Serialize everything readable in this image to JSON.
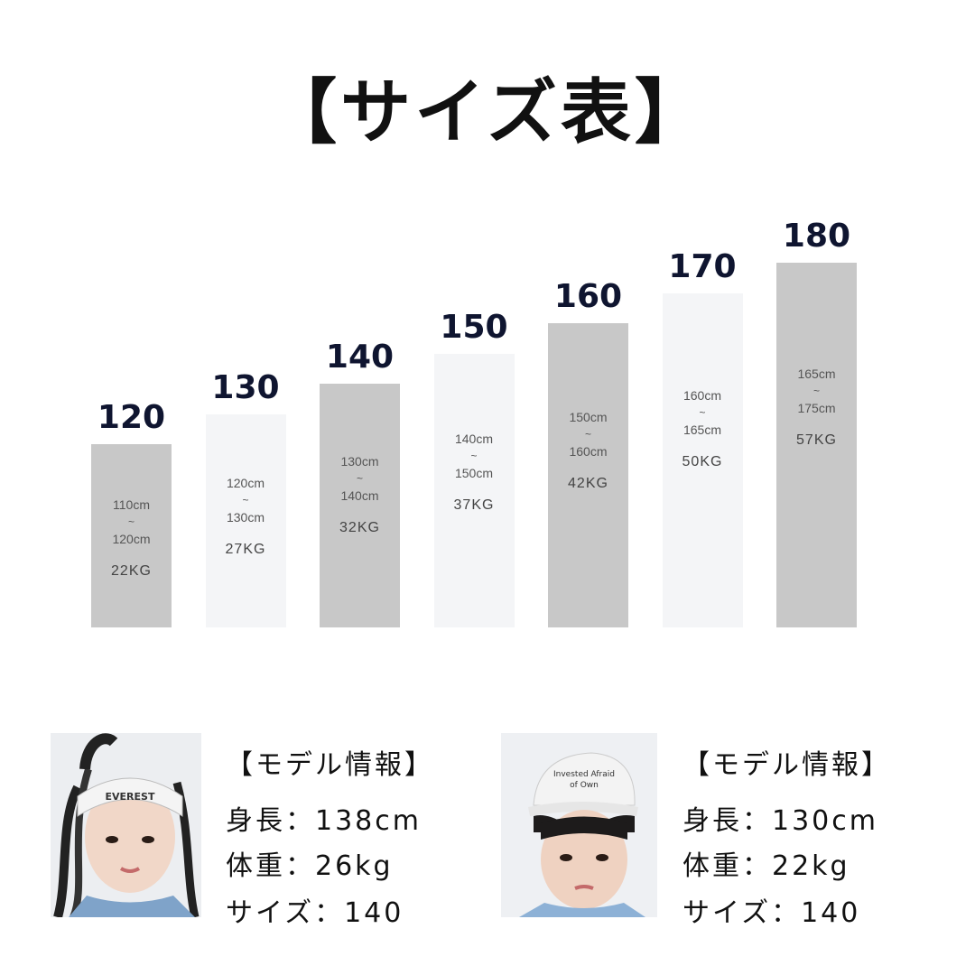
{
  "title": "【サイズ表】",
  "chart_data": {
    "type": "bar",
    "categories": [
      "120",
      "130",
      "140",
      "150",
      "160",
      "170",
      "180"
    ],
    "bars": [
      {
        "size": "120",
        "range_from": "110cm",
        "range_sep": "~",
        "range_to": "120cm",
        "weight": "22KG",
        "color": "#c8c8c8"
      },
      {
        "size": "130",
        "range_from": "120cm",
        "range_sep": "~",
        "range_to": "130cm",
        "weight": "27KG",
        "color": "#f4f5f7"
      },
      {
        "size": "140",
        "range_from": "130cm",
        "range_sep": "~",
        "range_to": "140cm",
        "weight": "32KG",
        "color": "#c8c8c8"
      },
      {
        "size": "150",
        "range_from": "140cm",
        "range_sep": "~",
        "range_to": "150cm",
        "weight": "37KG",
        "color": "#f4f5f7"
      },
      {
        "size": "160",
        "range_from": "150cm",
        "range_sep": "~",
        "range_to": "160cm",
        "weight": "42KG",
        "color": "#c8c8c8"
      },
      {
        "size": "170",
        "range_from": "160cm",
        "range_sep": "~",
        "range_to": "165cm",
        "weight": "50KG",
        "color": "#f4f5f7"
      },
      {
        "size": "180",
        "range_from": "165cm",
        "range_sep": "~",
        "range_to": "175cm",
        "weight": "57KG",
        "color": "#c8c8c8"
      }
    ]
  },
  "models": [
    {
      "heading": "【モデル情報】",
      "height": "身長：138cm",
      "weight": "体重：26kg",
      "size": "サイズ：140",
      "photo_icon": "girl-model-photo"
    },
    {
      "heading": "【モデル情報】",
      "height": "身長：130cm",
      "weight": "体重：22kg",
      "size": "サイズ：140",
      "photo_icon": "boy-model-photo"
    }
  ]
}
